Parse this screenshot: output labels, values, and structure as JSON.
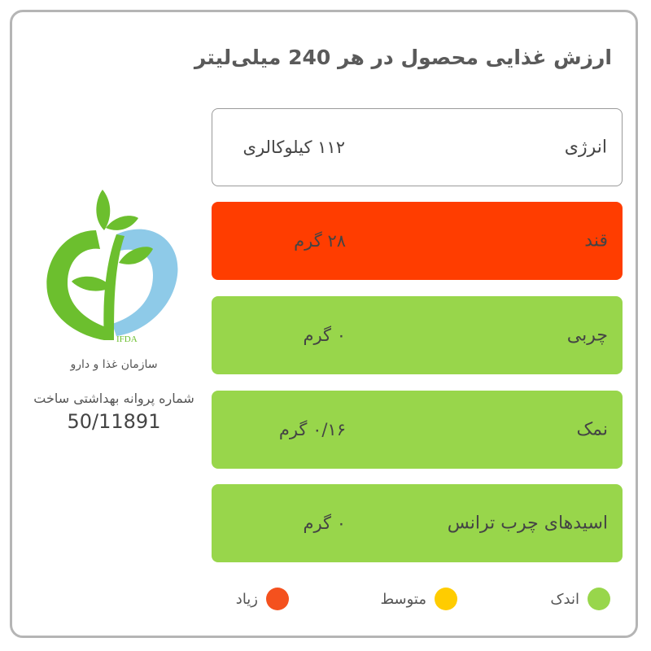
{
  "title": "ارزش غذایی محصول در هر 240 میلی‌لیتر",
  "rows": [
    {
      "label": "انرژی",
      "value": "۱۱۲  کیلوکالری",
      "level": "none"
    },
    {
      "label": "قند",
      "value": "۲۸  گرم",
      "level": "high"
    },
    {
      "label": "چربی",
      "value": "۰  گرم",
      "level": "low"
    },
    {
      "label": "نمک",
      "value": "۰/۱۶  گرم",
      "level": "low"
    },
    {
      "label": "اسیدهای چرب ترانس",
      "value": "۰  گرم",
      "level": "low"
    }
  ],
  "logo": {
    "text": "IFDA"
  },
  "org": {
    "name": "سازمان غذا و دارو",
    "license_label": "شماره پروانه بهداشتی ساخت",
    "license_number": "50/11891"
  },
  "legend": [
    {
      "label": "اندک",
      "color": "#98d64b"
    },
    {
      "label": "متوسط",
      "color": "#ffcc00"
    },
    {
      "label": "زیاد",
      "color": "#f4511e"
    }
  ],
  "colors": {
    "high": "#ff3d00",
    "low": "#98d64b",
    "border": "#b5b5b5"
  }
}
